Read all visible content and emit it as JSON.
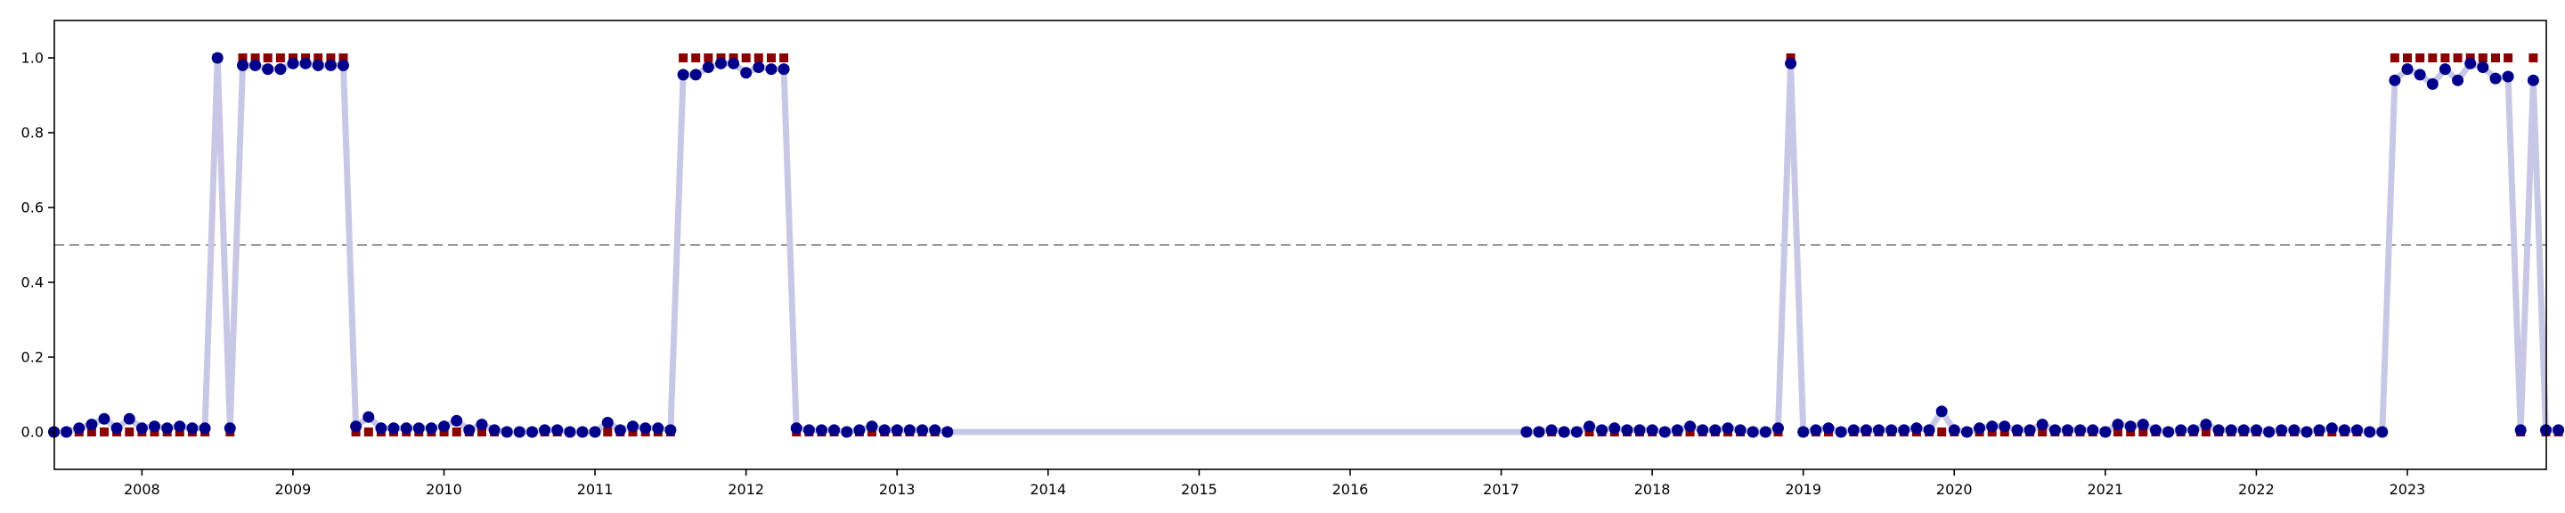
{
  "chart_data": {
    "type": "line",
    "title": "",
    "xlabel": "",
    "ylabel": "",
    "xlim": [
      2007.42,
      2023.92
    ],
    "ylim": [
      -0.1,
      1.1
    ],
    "grid": false,
    "x_ticks": [
      {
        "value": 2008.0,
        "label": "2008"
      },
      {
        "value": 2009.0,
        "label": "2009"
      },
      {
        "value": 2010.0,
        "label": "2010"
      },
      {
        "value": 2011.0,
        "label": "2011"
      },
      {
        "value": 2012.0,
        "label": "2012"
      },
      {
        "value": 2013.0,
        "label": "2013"
      },
      {
        "value": 2014.0,
        "label": "2014"
      },
      {
        "value": 2015.0,
        "label": "2015"
      },
      {
        "value": 2016.0,
        "label": "2016"
      },
      {
        "value": 2017.0,
        "label": "2017"
      },
      {
        "value": 2018.0,
        "label": "2018"
      },
      {
        "value": 2019.0,
        "label": "2019"
      },
      {
        "value": 2020.0,
        "label": "2020"
      },
      {
        "value": 2021.0,
        "label": "2021"
      },
      {
        "value": 2022.0,
        "label": "2022"
      },
      {
        "value": 2023.0,
        "label": "2023"
      }
    ],
    "y_ticks": [
      {
        "value": 0.0,
        "label": "0.0"
      },
      {
        "value": 0.2,
        "label": "0.2"
      },
      {
        "value": 0.4,
        "label": "0.4"
      },
      {
        "value": 0.6,
        "label": "0.6"
      },
      {
        "value": 0.8,
        "label": "0.8"
      },
      {
        "value": 1.0,
        "label": "1.0"
      }
    ],
    "threshold": 0.5,
    "colors": {
      "probability_line": "#c8c8e6",
      "probability_point": "#00008b",
      "label_marker": "#8b0000",
      "threshold": "#999999"
    },
    "series": [
      {
        "kind": "probability",
        "segments": [
          {
            "start": 2007.417,
            "values": [
              0.0,
              0.0,
              0.01,
              0.02,
              0.035,
              0.01,
              0.035,
              0.01,
              0.015,
              0.01,
              0.015,
              0.01,
              0.01,
              1.0,
              0.01,
              0.98,
              0.98,
              0.97,
              0.97,
              0.985,
              0.985,
              0.98,
              0.98,
              0.98,
              0.015,
              0.04,
              0.01,
              0.01,
              0.01,
              0.01,
              0.01,
              0.015,
              0.03,
              0.005,
              0.02,
              0.005,
              0.0,
              0.0,
              0.0,
              0.005,
              0.005,
              0.0,
              0.0,
              0.0,
              0.025,
              0.005,
              0.015,
              0.01,
              0.01,
              0.005,
              0.955,
              0.955,
              0.975,
              0.985,
              0.985,
              0.96,
              0.975,
              0.97,
              0.97,
              0.01,
              0.005,
              0.005,
              0.005,
              0.0,
              0.005,
              0.015,
              0.005,
              0.005,
              0.005,
              0.005,
              0.005,
              0.0
            ]
          },
          {
            "start": 2017.167,
            "values": [
              0.0,
              0.0,
              0.005,
              0.0,
              0.0,
              0.015,
              0.005,
              0.01,
              0.005,
              0.005,
              0.005,
              0.0,
              0.005,
              0.015,
              0.005,
              0.005,
              0.01,
              0.005,
              0.0,
              0.0,
              0.01,
              0.985,
              0.0,
              0.005,
              0.01,
              0.0,
              0.005,
              0.005,
              0.005,
              0.005,
              0.005,
              0.01,
              0.005,
              0.055,
              0.005,
              0.0,
              0.01,
              0.015,
              0.015,
              0.005,
              0.005,
              0.02,
              0.005,
              0.005,
              0.005,
              0.005,
              0.0,
              0.02,
              0.015,
              0.02,
              0.005,
              0.0,
              0.005,
              0.005,
              0.02,
              0.005,
              0.005,
              0.005,
              0.005,
              0.0,
              0.005,
              0.005,
              0.0,
              0.005,
              0.01,
              0.005,
              0.005,
              0.0,
              0.0,
              0.94,
              0.97,
              0.955,
              0.93,
              0.97,
              0.94,
              0.985,
              0.975,
              0.945,
              0.95,
              0.005,
              0.94,
              0.005,
              0.005
            ]
          }
        ]
      },
      {
        "kind": "labels",
        "segments": [
          {
            "start": 2007.417,
            "values": [
              0,
              0,
              0,
              0,
              0,
              0,
              0,
              0,
              0,
              0,
              0,
              0,
              0,
              1,
              0,
              1,
              1,
              1,
              1,
              1,
              1,
              1,
              1,
              1,
              0,
              0,
              0,
              0,
              0,
              0,
              0,
              0,
              0,
              0,
              0,
              0,
              0,
              0,
              0,
              0,
              0,
              0,
              0,
              0,
              0,
              0,
              0,
              0,
              0,
              0,
              1,
              1,
              1,
              1,
              1,
              1,
              1,
              1,
              1,
              0,
              0,
              0,
              0,
              0,
              0,
              0,
              0,
              0,
              0,
              0,
              0,
              0
            ]
          },
          {
            "start": 2017.167,
            "values": [
              0,
              0,
              0,
              0,
              0,
              0,
              0,
              0,
              0,
              0,
              0,
              0,
              0,
              0,
              0,
              0,
              0,
              0,
              0,
              0,
              0,
              1,
              0,
              0,
              0,
              0,
              0,
              0,
              0,
              0,
              0,
              0,
              0,
              0,
              0,
              0,
              0,
              0,
              0,
              0,
              0,
              0,
              0,
              0,
              0,
              0,
              0,
              0,
              0,
              0,
              0,
              0,
              0,
              0,
              0,
              0,
              0,
              0,
              0,
              0,
              0,
              0,
              0,
              0,
              0,
              0,
              0,
              0,
              0,
              1,
              1,
              1,
              1,
              1,
              1,
              1,
              1,
              1,
              1,
              0,
              1,
              0,
              0
            ]
          }
        ]
      }
    ]
  }
}
